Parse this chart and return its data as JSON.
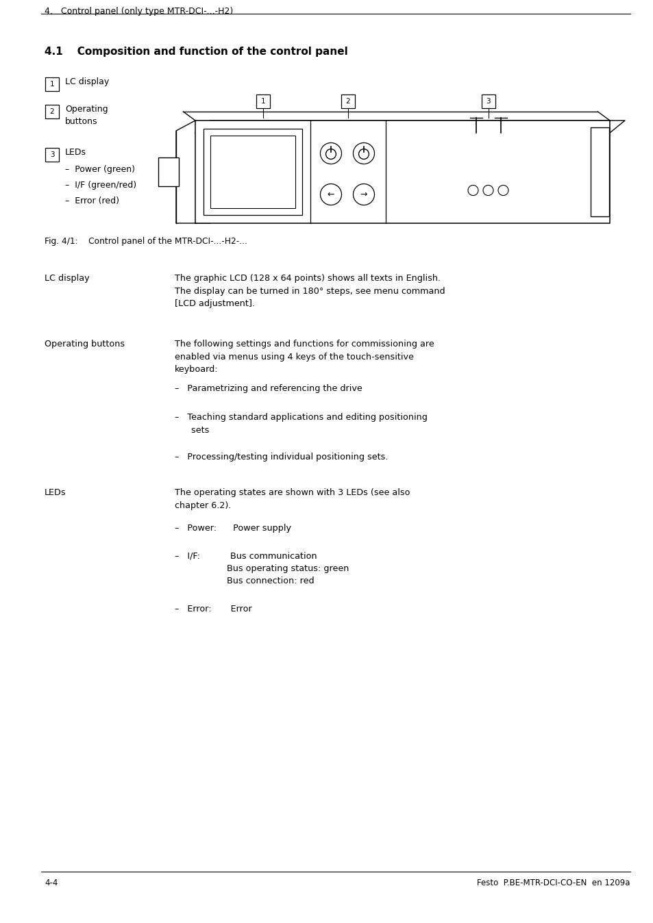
{
  "bg_color": "#ffffff",
  "text_color": "#000000",
  "header_text": "4.   Control panel (only type MTR-DCI-...-H2)",
  "section_title": "4.1    Composition and function of the control panel",
  "footer_left": "4-4",
  "footer_right": "Festo  P.BE-MTR-DCI-CO-EN  en 1209a",
  "fig_caption": "Fig. 4/1:    Control panel of the MTR-DCI-...-H2-..."
}
